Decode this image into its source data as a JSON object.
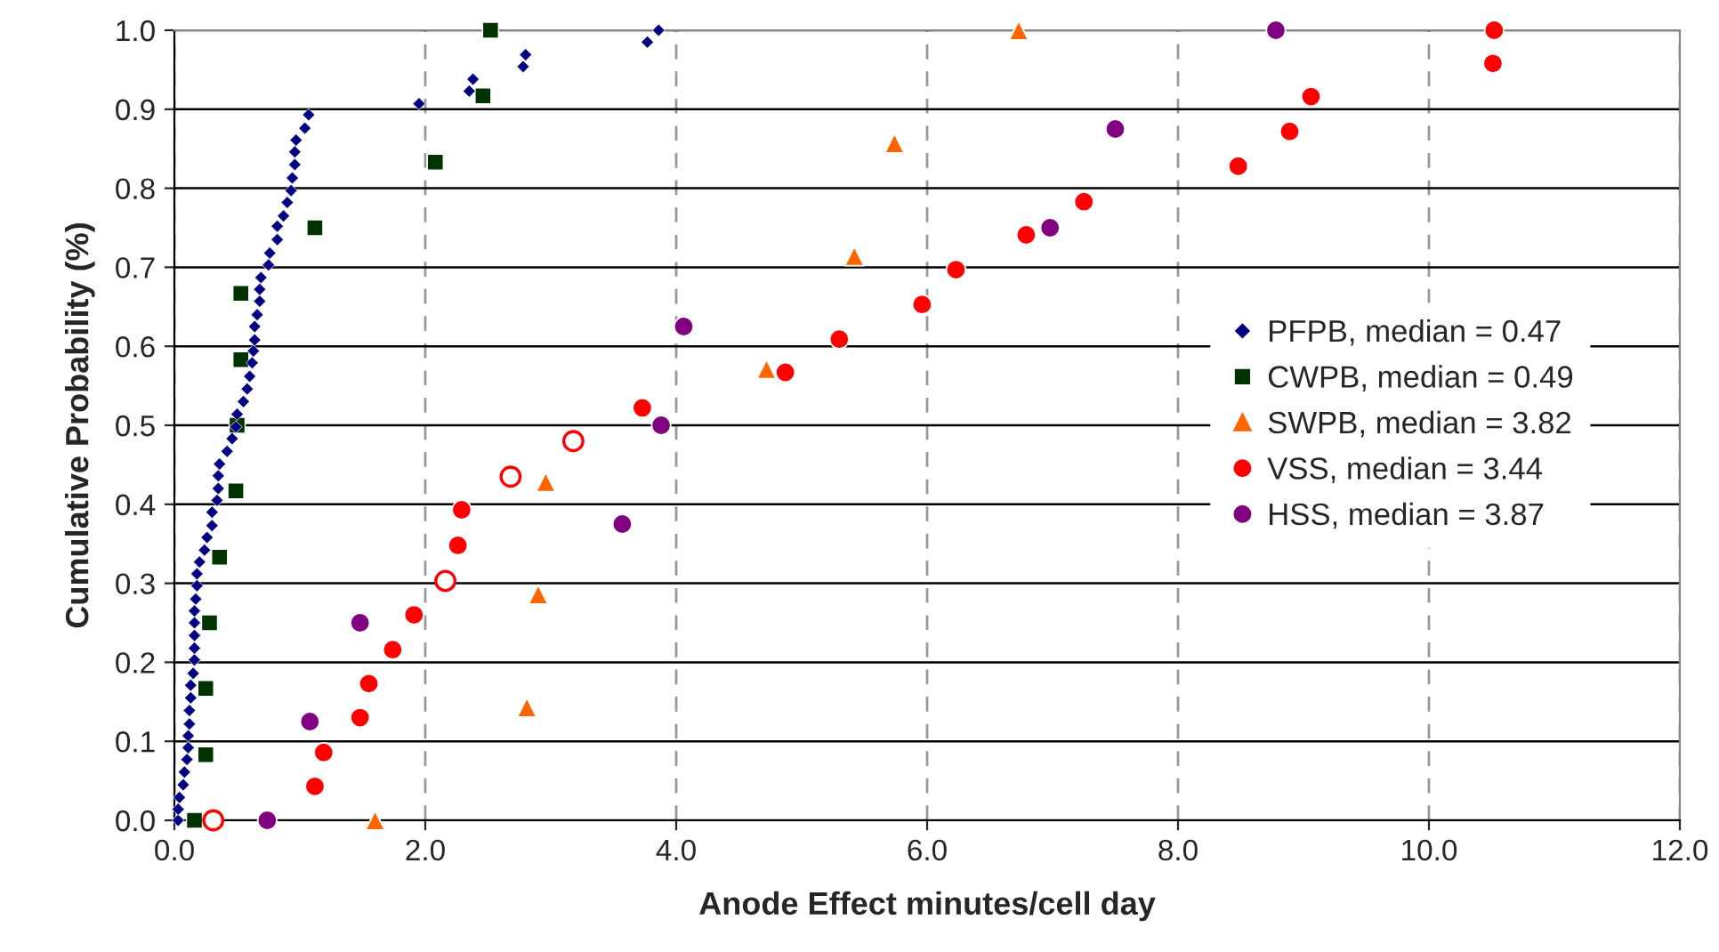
{
  "chart_data": {
    "type": "scatter",
    "xlabel": "Anode Effect minutes/cell day",
    "ylabel": "Cumulative Probability (%)",
    "xlim": [
      0,
      12
    ],
    "ylim": [
      0,
      1
    ],
    "xticks": [
      {
        "value": 0,
        "label": "0.0"
      },
      {
        "value": 2,
        "label": "2.0"
      },
      {
        "value": 4,
        "label": "4.0"
      },
      {
        "value": 6,
        "label": "6.0"
      },
      {
        "value": 8,
        "label": "8.0"
      },
      {
        "value": 10,
        "label": "10.0"
      },
      {
        "value": 12,
        "label": "12.0"
      }
    ],
    "yticks": [
      {
        "value": 0,
        "label": "0.0"
      },
      {
        "value": 0.1,
        "label": "0.1"
      },
      {
        "value": 0.2,
        "label": "0.2"
      },
      {
        "value": 0.3,
        "label": "0.3"
      },
      {
        "value": 0.4,
        "label": "0.4"
      },
      {
        "value": 0.5,
        "label": "0.5"
      },
      {
        "value": 0.6,
        "label": "0.6"
      },
      {
        "value": 0.7,
        "label": "0.7"
      },
      {
        "value": 0.8,
        "label": "0.8"
      },
      {
        "value": 0.9,
        "label": "0.9"
      },
      {
        "value": 1,
        "label": "1.0"
      }
    ],
    "grid": true,
    "legend": "right",
    "series": [
      {
        "name": "PFPB, median = 0.47",
        "color": "#000080",
        "marker": "diamond",
        "x": [
          0.03,
          0.03,
          0.04,
          0.07,
          0.08,
          0.1,
          0.11,
          0.11,
          0.12,
          0.12,
          0.13,
          0.13,
          0.15,
          0.16,
          0.16,
          0.16,
          0.16,
          0.16,
          0.17,
          0.18,
          0.18,
          0.2,
          0.24,
          0.26,
          0.3,
          0.3,
          0.34,
          0.35,
          0.35,
          0.36,
          0.42,
          0.46,
          0.49,
          0.5,
          0.55,
          0.58,
          0.6,
          0.62,
          0.63,
          0.64,
          0.64,
          0.66,
          0.68,
          0.68,
          0.69,
          0.75,
          0.76,
          0.82,
          0.82,
          0.87,
          0.9,
          0.93,
          0.94,
          0.96,
          0.96,
          0.97,
          1.04,
          1.07,
          1.95,
          2.35,
          2.38,
          2.78,
          2.8,
          3.77,
          3.86
        ],
        "values": [
          0.0,
          0.014,
          0.029,
          0.045,
          0.061,
          0.077,
          0.092,
          0.107,
          0.122,
          0.139,
          0.155,
          0.171,
          0.186,
          0.203,
          0.218,
          0.234,
          0.25,
          0.265,
          0.28,
          0.297,
          0.312,
          0.327,
          0.342,
          0.358,
          0.373,
          0.39,
          0.405,
          0.42,
          0.436,
          0.451,
          0.467,
          0.483,
          0.498,
          0.514,
          0.53,
          0.546,
          0.562,
          0.579,
          0.594,
          0.608,
          0.625,
          0.64,
          0.657,
          0.672,
          0.687,
          0.703,
          0.718,
          0.735,
          0.752,
          0.765,
          0.782,
          0.797,
          0.813,
          0.83,
          0.846,
          0.861,
          0.876,
          0.893,
          0.907,
          0.923,
          0.938,
          0.954,
          0.969,
          0.985,
          1.0
        ]
      },
      {
        "name": "CWPB, median = 0.49",
        "color": "#003300",
        "marker": "square",
        "x": [
          0.16,
          0.25,
          0.25,
          0.28,
          0.36,
          0.49,
          0.5,
          0.53,
          0.53,
          1.12,
          2.08,
          2.46,
          2.52
        ],
        "values": [
          0.0,
          0.083,
          0.167,
          0.25,
          0.333,
          0.417,
          0.5,
          0.583,
          0.667,
          0.75,
          0.833,
          0.917,
          1.0
        ]
      },
      {
        "name": "SWPB, median = 3.82",
        "color": "#ff6600",
        "marker": "triangle",
        "x": [
          1.6,
          2.81,
          2.9,
          2.96,
          4.72,
          5.42,
          5.74,
          6.73
        ],
        "values": [
          0.0,
          0.143,
          0.286,
          0.428,
          0.571,
          0.714,
          0.857,
          1.0
        ]
      },
      {
        "name": "VSS, median = 3.44",
        "color": "#ff0000",
        "marker": "circle",
        "x": [
          1.12,
          1.19,
          1.48,
          1.55,
          1.74,
          1.91,
          2.26,
          2.29,
          3.73,
          4.87,
          5.3,
          5.96,
          6.23,
          6.79,
          7.25,
          8.48,
          8.89,
          9.06,
          10.51,
          10.52
        ],
        "values": [
          0.043,
          0.086,
          0.13,
          0.173,
          0.216,
          0.26,
          0.348,
          0.393,
          0.522,
          0.567,
          0.609,
          0.653,
          0.697,
          0.741,
          0.783,
          0.828,
          0.872,
          0.916,
          0.958,
          1.0
        ]
      },
      {
        "color": "#ff0000",
        "marker": "circle",
        "x": [
          0.31,
          2.16,
          2.68,
          3.18
        ],
        "values": [
          0.0,
          0.303,
          0.435,
          0.48
        ]
      },
      {
        "name": "HSS, median = 3.87",
        "color": "#800080",
        "marker": "circle",
        "x": [
          0.74,
          1.08,
          1.48,
          3.57,
          3.88,
          4.06,
          6.98,
          7.5,
          8.78
        ],
        "values": [
          0.0,
          0.125,
          0.25,
          0.375,
          0.5,
          0.625,
          0.75,
          0.875,
          1.0
        ]
      }
    ]
  }
}
